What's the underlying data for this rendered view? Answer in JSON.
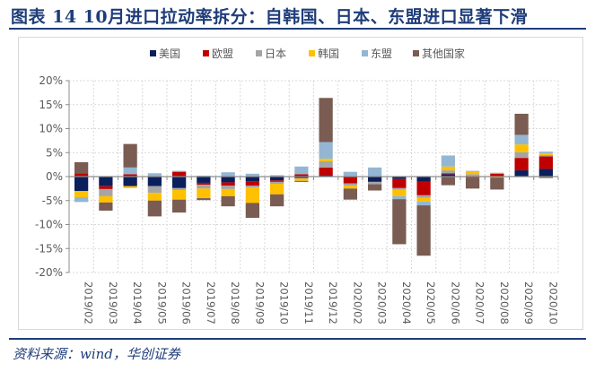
{
  "header": {
    "title": "图表 14   10月进口拉动率拆分：自韩国、日本、东盟进口显著下滑"
  },
  "footer": {
    "source": "资料来源：wind，华创证券"
  },
  "chart_data": {
    "type": "bar",
    "stacked": true,
    "title": "10月进口拉动率拆分：自韩国、日本、东盟进口显著下滑",
    "xlabel": "",
    "ylabel": "",
    "ylim": [
      -20,
      20
    ],
    "yticks": [
      20,
      15,
      10,
      5,
      0,
      -5,
      -10,
      -15,
      -20
    ],
    "ytick_labels": [
      "20%",
      "15%",
      "10%",
      "5%",
      "0%",
      "-5%",
      "-10%",
      "-15%",
      "-20%"
    ],
    "grid": true,
    "legend_position": "top-center",
    "categories": [
      "2019/02",
      "2019/03",
      "2019/04",
      "2019/05",
      "2019/06",
      "2019/07",
      "2019/08",
      "2019/09",
      "2019/10",
      "2019/11",
      "2019/12",
      "2020/02",
      "2020/03",
      "2020/04",
      "2020/05",
      "2020/06",
      "2020/07",
      "2020/08",
      "2020/09",
      "2020/10"
    ],
    "series": [
      {
        "name": "美国",
        "color": "#0a1f5c",
        "values": [
          -3.0,
          -2.0,
          -2.0,
          -2.0,
          -2.4,
          -1.3,
          -1.2,
          -1.0,
          -0.8,
          -0.3,
          0.3,
          0.0,
          -1.1,
          -0.5,
          -1.1,
          0.5,
          0.0,
          0.0,
          1.3,
          1.6
        ]
      },
      {
        "name": "欧盟",
        "color": "#c00000",
        "values": [
          0.7,
          -0.6,
          0.5,
          0.0,
          1.0,
          -0.4,
          -0.7,
          -0.9,
          -0.3,
          0.5,
          1.6,
          -1.4,
          0.0,
          -1.9,
          -2.8,
          0.2,
          -0.2,
          0.6,
          2.6,
          2.6
        ]
      },
      {
        "name": "日本",
        "color": "#a5a5a5",
        "values": [
          0.0,
          -1.5,
          0.0,
          -1.4,
          -0.4,
          -0.8,
          -0.7,
          -0.4,
          -0.4,
          -0.1,
          1.3,
          -0.5,
          -0.5,
          -0.3,
          -0.5,
          0.6,
          0.5,
          0.2,
          1.2,
          0.3
        ]
      },
      {
        "name": "韩国",
        "color": "#ffc000",
        "values": [
          -1.3,
          -1.3,
          -0.4,
          -1.6,
          -2.0,
          -2.0,
          -1.5,
          -3.2,
          -2.2,
          -0.5,
          0.5,
          -0.6,
          0.0,
          -1.4,
          -0.8,
          0.8,
          0.5,
          -0.2,
          1.6,
          0.3
        ]
      },
      {
        "name": "东盟",
        "color": "#94b6d2",
        "values": [
          -1.0,
          0.0,
          1.4,
          0.7,
          0.2,
          0.2,
          0.9,
          0.6,
          0.3,
          1.6,
          3.5,
          1.0,
          1.9,
          -0.6,
          -0.8,
          2.3,
          0.2,
          0.0,
          2.0,
          0.4
        ]
      },
      {
        "name": "其他国家",
        "color": "#7a5c52",
        "values": [
          2.3,
          -1.7,
          4.9,
          -3.3,
          -2.7,
          -0.4,
          -2.1,
          -3.1,
          -2.5,
          -0.2,
          9.2,
          -2.3,
          -1.3,
          -9.4,
          -10.5,
          -1.8,
          -2.3,
          -2.5,
          4.4,
          -0.3
        ]
      }
    ]
  }
}
